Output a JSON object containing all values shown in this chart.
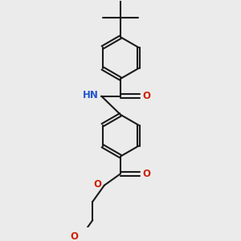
{
  "bg_color": "#ebebeb",
  "bond_color": "#1a1a1a",
  "bond_width": 1.5,
  "dbo": 0.035,
  "r": 0.36,
  "figsize": [
    3.0,
    3.0
  ],
  "dpi": 100,
  "xlim": [
    0.5,
    3.5
  ],
  "ylim": [
    -0.2,
    3.7
  ],
  "n_color": "#2255cc",
  "o_color": "#cc2200",
  "font_size": 8.5
}
